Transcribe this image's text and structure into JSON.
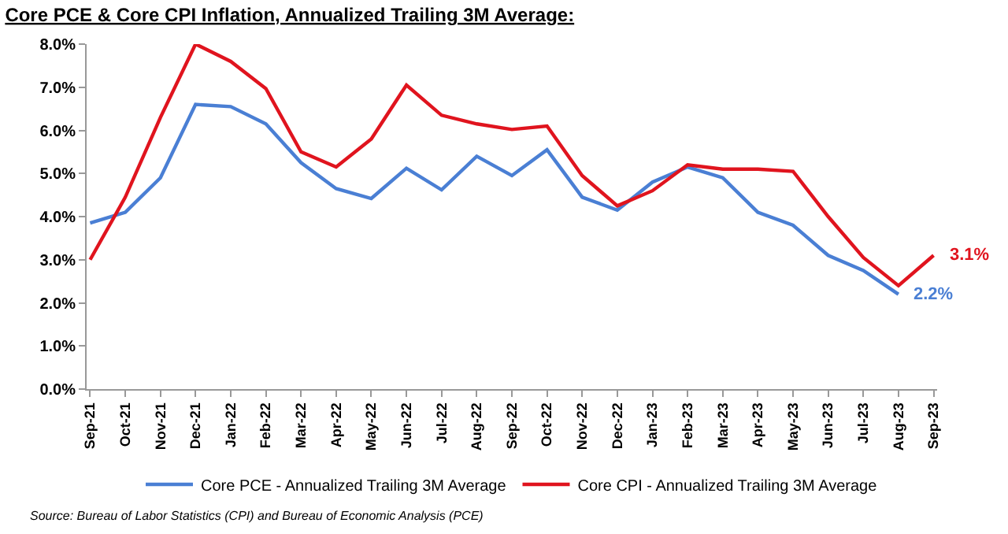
{
  "chart_data": {
    "type": "line",
    "title": "Core PCE & Core CPI Inflation, Annualized Trailing 3M Average:",
    "categories": [
      "Sep-21",
      "Oct-21",
      "Nov-21",
      "Dec-21",
      "Jan-22",
      "Feb-22",
      "Mar-22",
      "Apr-22",
      "May-22",
      "Jun-22",
      "Jul-22",
      "Aug-22",
      "Sep-22",
      "Oct-22",
      "Nov-22",
      "Dec-22",
      "Jan-23",
      "Feb-23",
      "Mar-23",
      "Apr-23",
      "May-23",
      "Jun-23",
      "Jul-23",
      "Aug-23",
      "Sep-23"
    ],
    "series": [
      {
        "name": "Core PCE - Annualized Trailing 3M Average",
        "color": "#4a7fd4",
        "values": [
          3.85,
          4.1,
          4.9,
          6.6,
          6.55,
          6.15,
          5.25,
          4.65,
          4.42,
          5.12,
          4.62,
          5.4,
          4.95,
          5.55,
          4.45,
          4.15,
          4.8,
          5.15,
          4.9,
          4.1,
          3.8,
          3.1,
          2.75,
          2.2,
          null
        ],
        "value_labels": [
          null,
          null,
          null,
          null,
          null,
          null,
          null,
          null,
          null,
          null,
          null,
          null,
          null,
          null,
          null,
          null,
          null,
          null,
          null,
          null,
          null,
          null,
          null,
          "2.2%",
          null
        ]
      },
      {
        "name": "Core CPI - Annualized Trailing 3M Average",
        "color": "#e0141e",
        "values": [
          3.0,
          4.45,
          6.3,
          8.0,
          7.6,
          6.97,
          5.5,
          5.15,
          5.8,
          7.05,
          6.35,
          6.15,
          6.02,
          6.1,
          4.95,
          4.25,
          4.6,
          5.2,
          5.1,
          5.1,
          5.05,
          4.0,
          3.05,
          2.4,
          3.1
        ],
        "value_labels": [
          null,
          null,
          null,
          null,
          null,
          null,
          null,
          null,
          null,
          null,
          null,
          null,
          null,
          null,
          null,
          null,
          null,
          null,
          null,
          null,
          null,
          null,
          null,
          null,
          "3.1%"
        ]
      }
    ],
    "ylim": [
      0,
      8
    ],
    "yticks": [
      {
        "value": 0,
        "label": "0.0%"
      },
      {
        "value": 1,
        "label": "1.0%"
      },
      {
        "value": 2,
        "label": "2.0%"
      },
      {
        "value": 3,
        "label": "3.0%"
      },
      {
        "value": 4,
        "label": "4.0%"
      },
      {
        "value": 5,
        "label": "5.0%"
      },
      {
        "value": 6,
        "label": "6.0%"
      },
      {
        "value": 7,
        "label": "7.0%"
      },
      {
        "value": 8,
        "label": "8.0%"
      }
    ],
    "legend": "bottom",
    "marker": "none",
    "line_style": "solid",
    "annotations": [
      "Source: Bureau of Labor Statistics (CPI) and Bureau of Economic Analysis (PCE)"
    ]
  }
}
